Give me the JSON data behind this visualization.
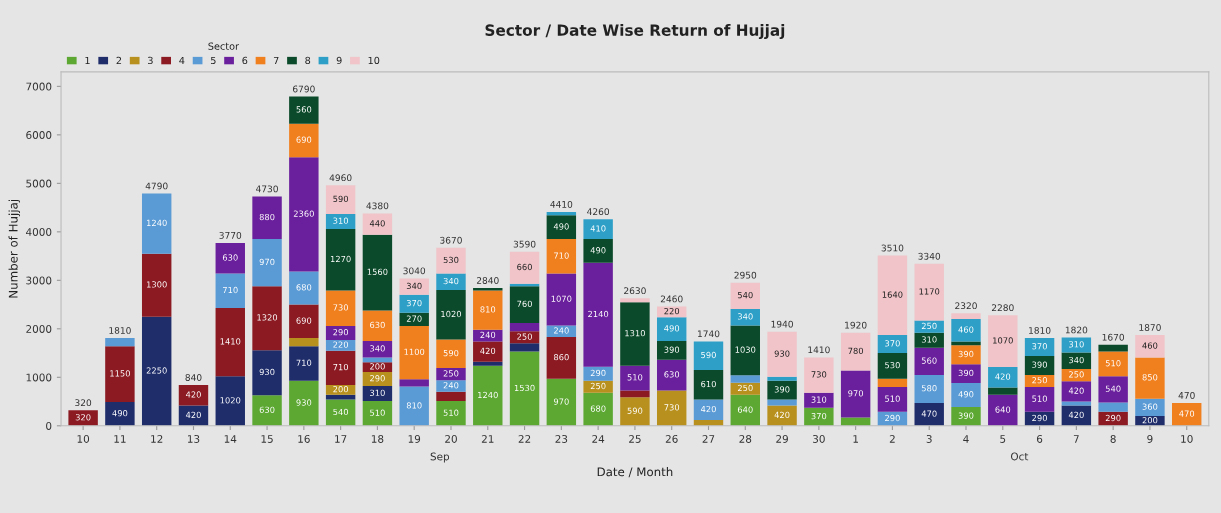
{
  "chart_data": {
    "type": "bar",
    "stacked": true,
    "title": "Sector / Date Wise Return of Hujjaj",
    "xlabel": "Date / Month",
    "ylabel": "Number of Hujjaj",
    "legend_title": "Sector",
    "legend": "top left",
    "grid": false,
    "categories": [
      "10",
      "11",
      "12",
      "13",
      "14",
      "15",
      "16",
      "17",
      "18",
      "19",
      "20",
      "21",
      "22",
      "23",
      "24",
      "25",
      "26",
      "27",
      "28",
      "29",
      "30",
      "1",
      "2",
      "3",
      "4",
      "5",
      "6",
      "7",
      "8",
      "9",
      "10"
    ],
    "ylim": [
      0,
      7300
    ],
    "yticks": [
      0,
      1000,
      2000,
      3000,
      4000,
      5000,
      6000,
      7000
    ],
    "annotations": [
      "Sep",
      "Oct"
    ],
    "totals": [
      "320",
      "1810",
      "4790",
      "840",
      "3770",
      "4730",
      "6790",
      "4960",
      "4380",
      "3040",
      "3670",
      "2840",
      "3590",
      "4410",
      "4260",
      "2630",
      "2460",
      "1740",
      "2950",
      "1940",
      "1410",
      "1920",
      "3510",
      "3340",
      "2320",
      "2280",
      "1810",
      "1820",
      "1670",
      "1870",
      "470"
    ],
    "series": [
      {
        "name": "1",
        "color": "#5ca832",
        "values": [
          null,
          null,
          null,
          null,
          null,
          630,
          930,
          540,
          510,
          null,
          510,
          1240,
          1530,
          970,
          680,
          null,
          null,
          null,
          640,
          null,
          370,
          170,
          null,
          null,
          390,
          null,
          null,
          null,
          null,
          null,
          null
        ],
        "value_labels": [
          null,
          null,
          null,
          null,
          null,
          "630",
          "930",
          "540",
          "510",
          null,
          "510",
          "1240",
          "1530",
          "970",
          "680",
          null,
          null,
          null,
          "640",
          null,
          "370",
          null,
          null,
          null,
          "390",
          null,
          null,
          null,
          null,
          null,
          null
        ]
      },
      {
        "name": "2",
        "color": "#1f2d6b",
        "values": [
          null,
          490,
          2250,
          420,
          1020,
          930,
          710,
          100,
          310,
          null,
          null,
          80,
          170,
          null,
          null,
          null,
          null,
          null,
          null,
          null,
          null,
          null,
          null,
          470,
          null,
          null,
          290,
          420,
          null,
          200,
          null
        ],
        "value_labels": [
          null,
          "490",
          "2250",
          "420",
          "1020",
          "930",
          "710",
          null,
          "310",
          null,
          null,
          null,
          null,
          null,
          null,
          null,
          null,
          null,
          null,
          null,
          null,
          null,
          null,
          "470",
          null,
          null,
          "290",
          "420",
          null,
          "200",
          null
        ]
      },
      {
        "name": "3",
        "color": "#b8901e",
        "values": [
          null,
          null,
          null,
          null,
          null,
          null,
          170,
          200,
          290,
          null,
          null,
          null,
          null,
          null,
          250,
          590,
          730,
          120,
          250,
          420,
          null,
          null,
          null,
          null,
          null,
          null,
          null,
          null,
          null,
          null,
          null
        ],
        "value_labels": [
          null,
          null,
          null,
          null,
          null,
          null,
          null,
          "200",
          "290",
          null,
          null,
          null,
          null,
          null,
          "250",
          "590",
          "730",
          null,
          "250",
          "420",
          null,
          null,
          null,
          null,
          null,
          null,
          null,
          null,
          null,
          null,
          null
        ]
      },
      {
        "name": "4",
        "color": "#8b1a22",
        "values": [
          320,
          1150,
          1300,
          420,
          1410,
          1320,
          690,
          710,
          200,
          null,
          190,
          420,
          250,
          860,
          null,
          140,
          null,
          null,
          null,
          null,
          null,
          null,
          null,
          null,
          null,
          null,
          null,
          null,
          290,
          null,
          null
        ],
        "value_labels": [
          "320",
          "1150",
          "1300",
          "420",
          "1410",
          "1320",
          "690",
          "710",
          "200",
          null,
          null,
          "420",
          "250",
          "860",
          null,
          null,
          null,
          null,
          null,
          null,
          null,
          null,
          null,
          null,
          null,
          null,
          null,
          null,
          "290",
          null,
          null
        ]
      },
      {
        "name": "5",
        "color": "#5b9bd5",
        "values": [
          null,
          170,
          1240,
          null,
          710,
          970,
          680,
          220,
          100,
          810,
          240,
          null,
          null,
          240,
          290,
          null,
          null,
          420,
          150,
          120,
          null,
          null,
          290,
          580,
          490,
          null,
          null,
          80,
          190,
          360,
          null
        ],
        "value_labels": [
          null,
          null,
          "1240",
          null,
          "710",
          "970",
          "680",
          "220",
          null,
          "810",
          "240",
          null,
          null,
          "240",
          "290",
          null,
          null,
          "420",
          null,
          null,
          null,
          null,
          "290",
          "580",
          "490",
          null,
          null,
          null,
          null,
          "360",
          null
        ]
      },
      {
        "name": "6",
        "color": "#6a1f9c",
        "values": [
          null,
          null,
          null,
          null,
          630,
          880,
          2360,
          290,
          340,
          150,
          250,
          240,
          170,
          1070,
          2140,
          510,
          630,
          null,
          null,
          null,
          310,
          970,
          510,
          560,
          390,
          640,
          510,
          420,
          540,
          null,
          null
        ],
        "value_labels": [
          null,
          null,
          null,
          null,
          "630",
          "880",
          "2360",
          "290",
          "340",
          null,
          "250",
          "240",
          null,
          "1070",
          "2140",
          "510",
          "630",
          null,
          null,
          null,
          "310",
          "970",
          "510",
          "560",
          "390",
          "640",
          "510",
          "420",
          "540",
          null,
          null
        ]
      },
      {
        "name": "7",
        "color": "#f07f1e",
        "values": [
          null,
          null,
          null,
          null,
          null,
          null,
          690,
          730,
          630,
          1100,
          590,
          810,
          null,
          710,
          null,
          null,
          null,
          null,
          null,
          null,
          null,
          null,
          170,
          null,
          390,
          null,
          250,
          250,
          510,
          850,
          470
        ],
        "value_labels": [
          null,
          null,
          null,
          null,
          null,
          null,
          "690",
          "730",
          "630",
          "1100",
          "590",
          "810",
          null,
          "710",
          null,
          null,
          null,
          null,
          null,
          null,
          null,
          null,
          null,
          null,
          "390",
          null,
          "250",
          "250",
          "510",
          "850",
          "470"
        ]
      },
      {
        "name": "8",
        "color": "#0b4a2a",
        "values": [
          null,
          null,
          null,
          null,
          null,
          null,
          560,
          1270,
          1560,
          270,
          1020,
          50,
          760,
          490,
          490,
          1310,
          390,
          610,
          1030,
          390,
          null,
          null,
          530,
          310,
          80,
          150,
          390,
          340,
          140,
          null,
          null
        ],
        "value_labels": [
          null,
          null,
          null,
          null,
          null,
          null,
          "560",
          "1270",
          "1560",
          "270",
          "1020",
          null,
          "760",
          "490",
          "490",
          "1310",
          "390",
          "610",
          "1030",
          "390",
          null,
          null,
          "530",
          "310",
          null,
          null,
          "390",
          "340",
          null,
          null,
          null
        ]
      },
      {
        "name": "9",
        "color": "#2ea0c8",
        "values": [
          null,
          null,
          null,
          null,
          null,
          null,
          null,
          310,
          null,
          370,
          340,
          null,
          50,
          70,
          410,
          null,
          490,
          590,
          340,
          80,
          null,
          null,
          370,
          250,
          460,
          420,
          370,
          310,
          null,
          null,
          null
        ],
        "value_labels": [
          null,
          null,
          null,
          null,
          null,
          null,
          null,
          "310",
          null,
          "370",
          "340",
          null,
          null,
          null,
          "410",
          null,
          "490",
          "590",
          "340",
          null,
          null,
          null,
          "370",
          "250",
          "460",
          "420",
          "370",
          "310",
          null,
          null,
          null
        ]
      },
      {
        "name": "10",
        "color": "#f0c4c8",
        "values": [
          null,
          null,
          null,
          null,
          null,
          null,
          null,
          590,
          440,
          340,
          530,
          null,
          660,
          null,
          null,
          80,
          220,
          null,
          540,
          930,
          730,
          780,
          1640,
          1170,
          120,
          1070,
          null,
          null,
          null,
          460,
          null
        ],
        "value_labels": [
          null,
          null,
          null,
          null,
          null,
          null,
          null,
          "590",
          "440",
          "340",
          "530",
          null,
          "660",
          null,
          null,
          null,
          "220",
          null,
          "540",
          "930",
          "730",
          "780",
          "1640",
          "1170",
          null,
          "1070",
          null,
          null,
          null,
          "460",
          null
        ]
      }
    ]
  }
}
